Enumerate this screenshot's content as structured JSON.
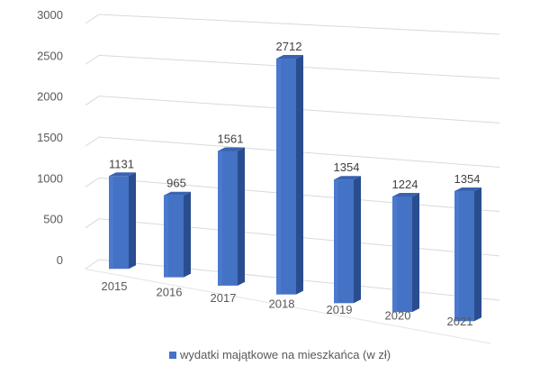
{
  "chart_data": {
    "type": "bar",
    "style": "3d-column",
    "title": "",
    "xlabel": "",
    "ylabel": "",
    "categories": [
      "2015",
      "2016",
      "2017",
      "2018",
      "2019",
      "2020",
      "2021"
    ],
    "series": [
      {
        "name": "wydatki majątkowe na mieszkańca (w zł)",
        "color": "#4472C4",
        "values": [
          1131,
          965,
          1561,
          2712,
          1354,
          1224,
          1354
        ]
      }
    ],
    "ylim": [
      0,
      3000
    ],
    "yticks": [
      0,
      500,
      1000,
      1500,
      2000,
      2500,
      3000
    ],
    "grid": true,
    "data_labels": true,
    "legend_position": "bottom"
  },
  "legend": {
    "label": "wydatki majątkowe na mieszkańca (w zł)",
    "color": "#4472C4"
  }
}
